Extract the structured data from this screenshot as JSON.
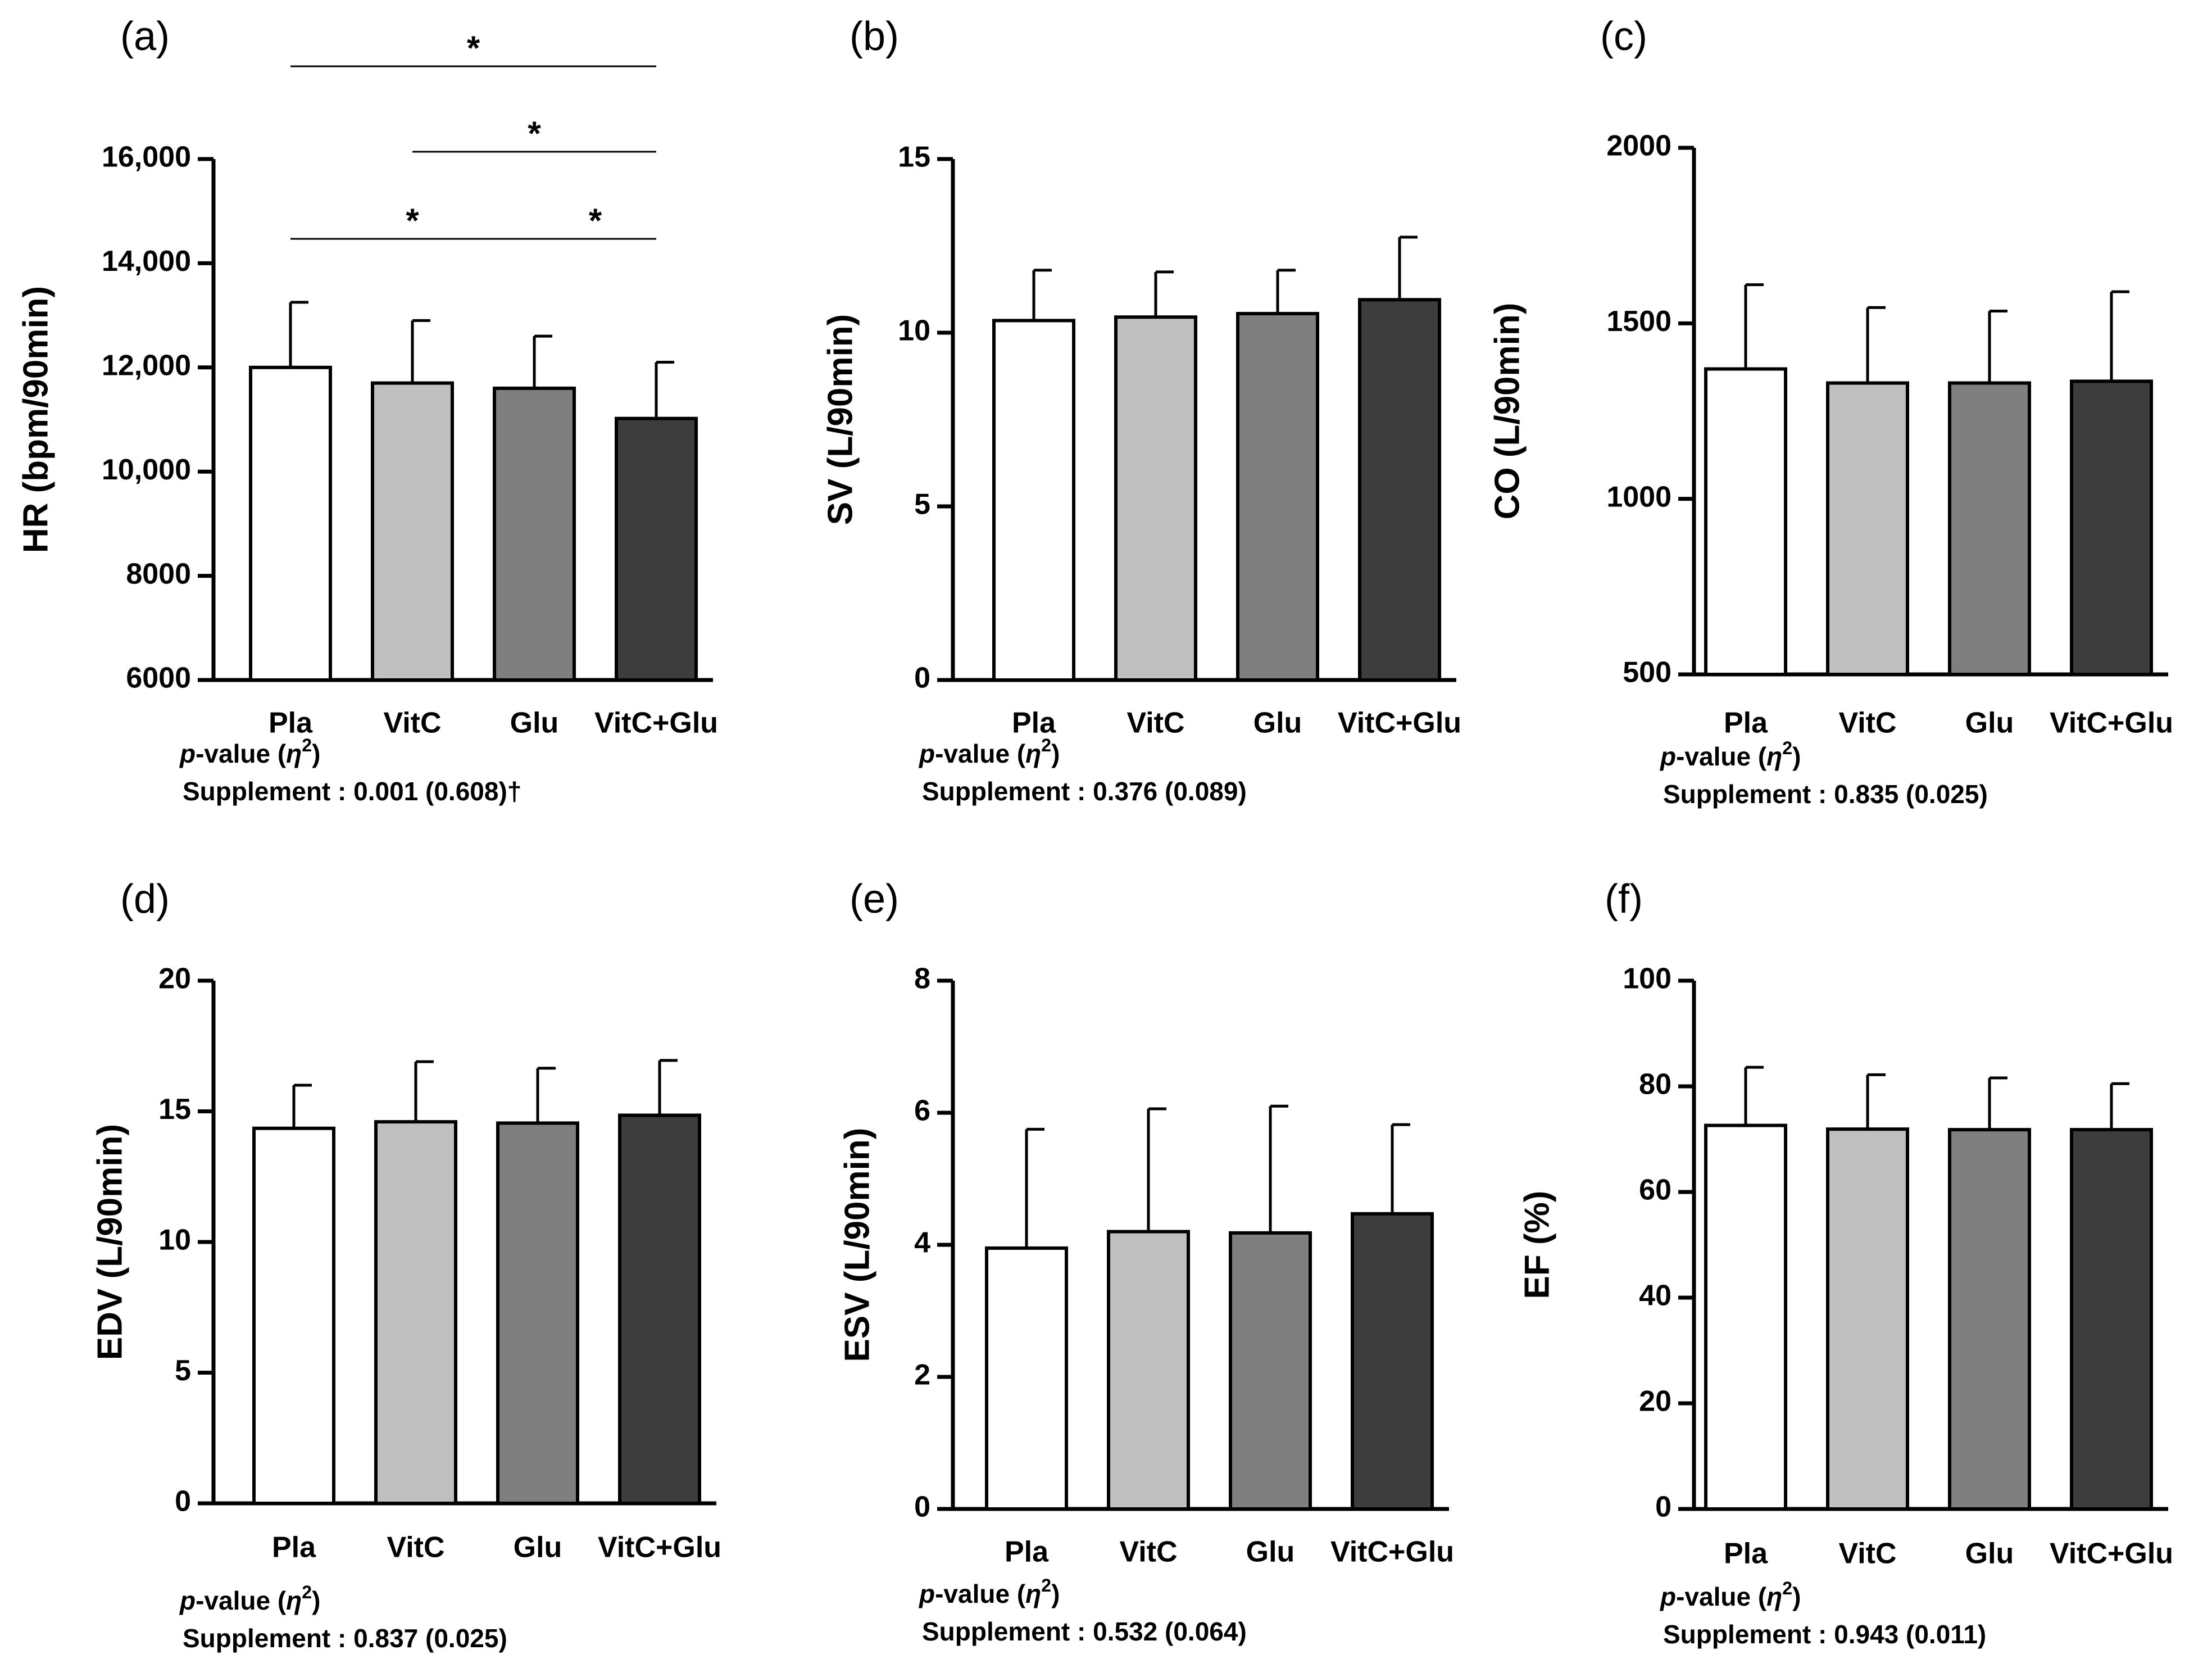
{
  "figure": {
    "bar_colors": [
      "#ffffff",
      "#c0c0c0",
      "#7f7f7f",
      "#3d3d3d"
    ],
    "axis_color": "#000000"
  },
  "chart_data": [
    {
      "panel": "(a)",
      "type": "bar",
      "categories": [
        "Pla",
        "VitC",
        "Glu",
        "VitC+Glu"
      ],
      "values": [
        12000,
        11700,
        11600,
        11020
      ],
      "errors": [
        1250,
        1200,
        1000,
        1080
      ],
      "ylabel": "HR (bpm/90min)",
      "ylim": [
        6000,
        16000
      ],
      "yticks": [
        6000,
        8000,
        10000,
        12000,
        14000,
        16000
      ],
      "ytick_labels": [
        "6000",
        "8000",
        "10,000",
        "12,000",
        "14,000",
        "16,000"
      ],
      "pvalue_header": "-value (",
      "pvalue_p": "p",
      "pvalue_eta": "η",
      "pvalue_sup": "2",
      "pvalue_close": ")",
      "pvalue_line": "Supplement : 0.001 (0.608)†",
      "significance": [
        {
          "from": 0,
          "to": 3,
          "label": "*"
        },
        {
          "from": 1,
          "to": 3,
          "label": "*"
        },
        {
          "from": 0,
          "to": 2,
          "label": "*"
        },
        {
          "from": 2,
          "to": 3,
          "label": "*"
        }
      ]
    },
    {
      "panel": "(b)",
      "type": "bar",
      "categories": [
        "Pla",
        "VitC",
        "Glu",
        "VitC+Glu"
      ],
      "values": [
        10.35,
        10.45,
        10.55,
        10.95
      ],
      "errors": [
        1.45,
        1.3,
        1.25,
        1.8
      ],
      "ylabel": "SV (L/90min)",
      "ylim": [
        0,
        15
      ],
      "yticks": [
        0,
        5,
        10,
        15
      ],
      "ytick_labels": [
        "0",
        "5",
        "10",
        "15"
      ],
      "pvalue_header": "-value (",
      "pvalue_p": "p",
      "pvalue_eta": "η",
      "pvalue_sup": "2",
      "pvalue_close": ")",
      "pvalue_line": "Supplement : 0.376 (0.089)",
      "significance": []
    },
    {
      "panel": "(c)",
      "type": "bar",
      "categories": [
        "Pla",
        "VitC",
        "Glu",
        "VitC+Glu"
      ],
      "values": [
        1370,
        1330,
        1330,
        1335
      ],
      "errors": [
        240,
        215,
        205,
        255
      ],
      "ylabel": "CO (L/90min)",
      "ylim": [
        500,
        2000
      ],
      "yticks": [
        500,
        1000,
        1500,
        2000
      ],
      "ytick_labels": [
        "500",
        "1000",
        "1500",
        "2000"
      ],
      "pvalue_header": "-value (",
      "pvalue_p": "p",
      "pvalue_eta": "η",
      "pvalue_sup": "2",
      "pvalue_close": ")",
      "pvalue_line": "Supplement : 0.835 (0.025)",
      "significance": []
    },
    {
      "panel": "(d)",
      "type": "bar",
      "categories": [
        "Pla",
        "VitC",
        "Glu",
        "VitC+Glu"
      ],
      "values": [
        14.35,
        14.6,
        14.55,
        14.85
      ],
      "errors": [
        1.65,
        2.3,
        2.1,
        2.1
      ],
      "ylabel": "EDV (L/90min)",
      "ylim": [
        0,
        20
      ],
      "yticks": [
        0,
        5,
        10,
        15,
        20
      ],
      "ytick_labels": [
        "0",
        "5",
        "10",
        "15",
        "20"
      ],
      "pvalue_header": "-value (",
      "pvalue_p": "p",
      "pvalue_eta": "η",
      "pvalue_sup": "2",
      "pvalue_close": ")",
      "pvalue_line": "Supplement : 0.837 (0.025)",
      "significance": []
    },
    {
      "panel": "(e)",
      "type": "bar",
      "categories": [
        "Pla",
        "VitC",
        "Glu",
        "VitC+Glu"
      ],
      "values": [
        3.95,
        4.2,
        4.18,
        4.47
      ],
      "errors": [
        1.8,
        1.86,
        1.92,
        1.35
      ],
      "ylabel": "ESV (L/90min)",
      "ylim": [
        0,
        8
      ],
      "yticks": [
        0,
        2,
        4,
        6,
        8
      ],
      "ytick_labels": [
        "0",
        "2",
        "4",
        "6",
        "8"
      ],
      "pvalue_header": "-value (",
      "pvalue_p": "p",
      "pvalue_eta": "η",
      "pvalue_sup": "2",
      "pvalue_close": ")",
      "pvalue_line": "Supplement : 0.532 (0.064)",
      "significance": []
    },
    {
      "panel": "(f)",
      "type": "bar",
      "categories": [
        "Pla",
        "VitC",
        "Glu",
        "VitC+Glu"
      ],
      "values": [
        72.6,
        71.9,
        71.8,
        71.8
      ],
      "errors": [
        11,
        10.3,
        9.8,
        8.7
      ],
      "ylabel": "EF (%)",
      "ylim": [
        0,
        100
      ],
      "yticks": [
        0,
        20,
        40,
        60,
        80,
        100
      ],
      "ytick_labels": [
        "0",
        "20",
        "40",
        "60",
        "80",
        "100"
      ],
      "pvalue_header": "-value (",
      "pvalue_p": "p",
      "pvalue_eta": "η",
      "pvalue_sup": "2",
      "pvalue_close": ")",
      "pvalue_line": "Supplement : 0.943 (0.011)",
      "significance": []
    }
  ]
}
